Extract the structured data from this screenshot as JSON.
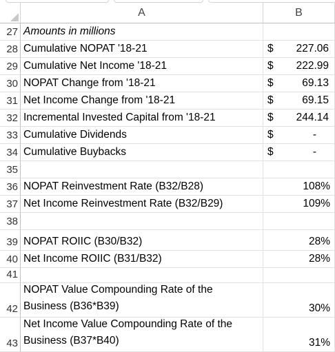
{
  "columns": {
    "a": "A",
    "b": "B"
  },
  "rows": [
    {
      "num": "27",
      "label": "Amounts in millions",
      "currency": "",
      "value": ""
    },
    {
      "num": "28",
      "label": "Cumulative NOPAT '18-21",
      "currency": "$",
      "value": "227.06"
    },
    {
      "num": "29",
      "label": "Cumulative Net Income '18-21",
      "currency": "$",
      "value": "222.99"
    },
    {
      "num": "30",
      "label": "NOPAT Change from '18-21",
      "currency": "$",
      "value": "69.13"
    },
    {
      "num": "31",
      "label": "Net Income Change from '18-21",
      "currency": "$",
      "value": "69.15"
    },
    {
      "num": "32",
      "label": "Incremental Invested Capital from '18-21",
      "currency": "$",
      "value": "244.14"
    },
    {
      "num": "33",
      "label": "Cumulative Dividends",
      "currency": "$",
      "value": "-"
    },
    {
      "num": "34",
      "label": "Cumulative Buybacks",
      "currency": "$",
      "value": "-"
    },
    {
      "num": "35",
      "label": "",
      "currency": "",
      "value": ""
    },
    {
      "num": "36",
      "label": "NOPAT Reinvestment Rate (B32/B28)",
      "currency": "",
      "value": "108%"
    },
    {
      "num": "37",
      "label": "Net Income Reinvestment Rate (B32/B29)",
      "currency": "",
      "value": "109%"
    },
    {
      "num": "38",
      "label": "",
      "currency": "",
      "value": ""
    },
    {
      "num": "39",
      "label": "NOPAT ROIIC (B30/B32)",
      "currency": "",
      "value": "28%"
    },
    {
      "num": "40",
      "label": "Net Income ROIIC (B31/B32)",
      "currency": "",
      "value": "28%"
    },
    {
      "num": "41",
      "label": "",
      "currency": "",
      "value": ""
    },
    {
      "num": "42",
      "label_line1": "NOPAT Value Compounding Rate of the",
      "label_line2": "Business (B36*B39)",
      "currency": "",
      "value": "30%"
    },
    {
      "num": "43",
      "label_line1": "Net Income Value Compounding Rate of the",
      "label_line2": "Business (B37*B40)",
      "currency": "",
      "value": "31%"
    }
  ]
}
